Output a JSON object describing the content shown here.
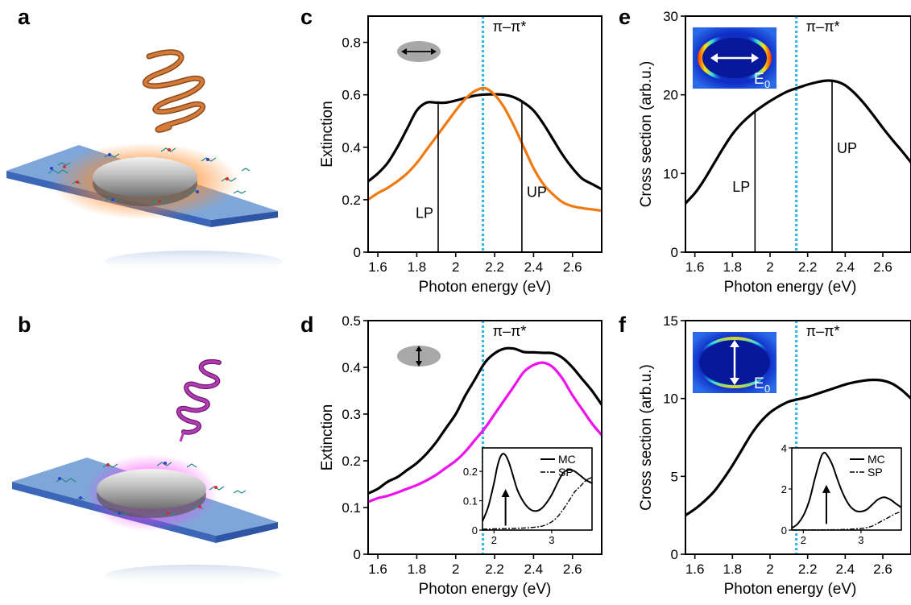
{
  "panel_labels": [
    "a",
    "b",
    "c",
    "d",
    "e",
    "f"
  ],
  "colors": {
    "black": "#000000",
    "orange": "#f07a10",
    "magenta": "#ee10ee",
    "transition_line": "#29b5e8",
    "substrate": "#7ea6d8"
  },
  "chart_data": [
    {
      "id": "c",
      "type": "line",
      "xlabel": "Photon energy (eV)",
      "ylabel": "Extinction",
      "xlim": [
        1.55,
        2.75
      ],
      "ylim": [
        0,
        0.9
      ],
      "xticks": [
        1.6,
        1.8,
        2,
        2.2,
        2.4,
        2.6
      ],
      "xtick_labels": [
        "1.6",
        "1.8",
        "2",
        "2.2",
        "2.4",
        "2.6"
      ],
      "yticks": [
        0,
        0.2,
        0.4,
        0.6,
        0.8
      ],
      "ytick_labels": [
        "0",
        "0.2",
        "0.4",
        "0.6",
        "0.8"
      ],
      "series": [
        {
          "color": "#000000",
          "x": [
            1.55,
            1.6,
            1.65,
            1.7,
            1.75,
            1.8,
            1.85,
            1.9,
            1.95,
            2.0,
            2.05,
            2.1,
            2.15,
            2.2,
            2.25,
            2.3,
            2.35,
            2.4,
            2.45,
            2.5,
            2.55,
            2.6,
            2.65,
            2.7,
            2.75
          ],
          "y": [
            0.27,
            0.3,
            0.34,
            0.4,
            0.47,
            0.54,
            0.57,
            0.57,
            0.57,
            0.578,
            0.588,
            0.597,
            0.601,
            0.602,
            0.6,
            0.59,
            0.57,
            0.54,
            0.49,
            0.43,
            0.37,
            0.32,
            0.28,
            0.26,
            0.24
          ]
        },
        {
          "color": "#f07a10",
          "x": [
            1.55,
            1.6,
            1.65,
            1.7,
            1.75,
            1.8,
            1.85,
            1.9,
            1.95,
            2.0,
            2.05,
            2.1,
            2.15,
            2.2,
            2.25,
            2.3,
            2.35,
            2.4,
            2.45,
            2.5,
            2.55,
            2.6,
            2.65,
            2.7,
            2.75
          ],
          "y": [
            0.2,
            0.225,
            0.245,
            0.27,
            0.3,
            0.34,
            0.39,
            0.44,
            0.49,
            0.54,
            0.585,
            0.615,
            0.625,
            0.6,
            0.55,
            0.48,
            0.4,
            0.32,
            0.26,
            0.22,
            0.19,
            0.175,
            0.168,
            0.163,
            0.158
          ]
        }
      ],
      "transition_x": 2.14,
      "transition_label": "π–π*",
      "markers": [
        {
          "x": 1.91,
          "label": "LP",
          "label_y": 0.13
        },
        {
          "x": 2.34,
          "label": "UP",
          "label_y": 0.21
        }
      ]
    },
    {
      "id": "d",
      "type": "line",
      "xlabel": "Photon energy (eV)",
      "ylabel": "Extinction",
      "xlim": [
        1.55,
        2.75
      ],
      "ylim": [
        0,
        0.5
      ],
      "xticks": [
        1.6,
        1.8,
        2,
        2.2,
        2.4,
        2.6
      ],
      "xtick_labels": [
        "1.6",
        "1.8",
        "2",
        "2.2",
        "2.4",
        "2.6"
      ],
      "yticks": [
        0,
        0.1,
        0.2,
        0.3,
        0.4,
        0.5
      ],
      "ytick_labels": [
        "0",
        "0.1",
        "0.2",
        "0.3",
        "0.4",
        "0.5"
      ],
      "series": [
        {
          "color": "#000000",
          "x": [
            1.55,
            1.6,
            1.65,
            1.7,
            1.75,
            1.8,
            1.85,
            1.9,
            1.95,
            2.0,
            2.05,
            2.1,
            2.15,
            2.2,
            2.25,
            2.3,
            2.35,
            2.4,
            2.45,
            2.5,
            2.55,
            2.6,
            2.65,
            2.7,
            2.75
          ],
          "y": [
            0.13,
            0.14,
            0.155,
            0.165,
            0.18,
            0.195,
            0.215,
            0.24,
            0.27,
            0.3,
            0.34,
            0.375,
            0.41,
            0.43,
            0.44,
            0.44,
            0.433,
            0.432,
            0.431,
            0.43,
            0.42,
            0.4,
            0.375,
            0.35,
            0.32
          ]
        },
        {
          "color": "#ee10ee",
          "x": [
            1.55,
            1.6,
            1.65,
            1.7,
            1.75,
            1.8,
            1.85,
            1.9,
            1.95,
            2.0,
            2.05,
            2.1,
            2.15,
            2.2,
            2.25,
            2.3,
            2.35,
            2.4,
            2.45,
            2.5,
            2.55,
            2.6,
            2.65,
            2.7,
            2.75
          ],
          "y": [
            0.112,
            0.12,
            0.125,
            0.132,
            0.14,
            0.148,
            0.158,
            0.17,
            0.185,
            0.2,
            0.22,
            0.245,
            0.27,
            0.3,
            0.33,
            0.36,
            0.39,
            0.405,
            0.41,
            0.4,
            0.375,
            0.34,
            0.31,
            0.28,
            0.255
          ]
        }
      ],
      "transition_x": 2.14,
      "transition_label": "π–π*",
      "inset": {
        "xlim": [
          1.8,
          3.7
        ],
        "ylim": [
          0,
          0.28
        ],
        "xticks": [
          2,
          3
        ],
        "xtick_labels": [
          "2",
          "3"
        ],
        "yticks": [
          0,
          0.1,
          0.2
        ],
        "ytick_labels": [
          "0",
          "0.1",
          "0.2"
        ],
        "legend": [
          "MC",
          "SP"
        ],
        "series": [
          {
            "name": "MC",
            "style": "solid",
            "x": [
              1.8,
              1.9,
              2.0,
              2.05,
              2.1,
              2.15,
              2.2,
              2.25,
              2.3,
              2.4,
              2.5,
              2.6,
              2.7,
              2.8,
              2.9,
              3.0,
              3.1,
              3.2,
              3.3,
              3.4,
              3.5,
              3.6,
              3.7
            ],
            "y": [
              0.03,
              0.08,
              0.16,
              0.21,
              0.245,
              0.26,
              0.255,
              0.235,
              0.205,
              0.14,
              0.1,
              0.075,
              0.065,
              0.07,
              0.09,
              0.12,
              0.16,
              0.195,
              0.205,
              0.2,
              0.185,
              0.17,
              0.16
            ]
          },
          {
            "name": "SP",
            "style": "dashdot",
            "x": [
              1.8,
              2.0,
              2.2,
              2.4,
              2.6,
              2.8,
              2.9,
              3.0,
              3.1,
              3.2,
              3.3,
              3.4,
              3.5,
              3.6,
              3.7
            ],
            "y": [
              0.003,
              0.004,
              0.005,
              0.006,
              0.008,
              0.012,
              0.018,
              0.028,
              0.045,
              0.07,
              0.1,
              0.13,
              0.15,
              0.17,
              0.18
            ]
          }
        ],
        "arrow": {
          "x": 2.2,
          "y_from": 0.015,
          "y_to": 0.14
        }
      }
    },
    {
      "id": "e",
      "type": "line",
      "xlabel": "Photon energy (eV)",
      "ylabel": "Cross section (arb.u.)",
      "xlim": [
        1.55,
        2.75
      ],
      "ylim": [
        0,
        30
      ],
      "xticks": [
        1.6,
        1.8,
        2,
        2.2,
        2.4,
        2.6
      ],
      "xtick_labels": [
        "1.6",
        "1.8",
        "2",
        "2.2",
        "2.4",
        "2.6"
      ],
      "yticks": [
        0,
        10,
        20,
        30
      ],
      "ytick_labels": [
        "0",
        "10",
        "20",
        "30"
      ],
      "series": [
        {
          "color": "#000000",
          "x": [
            1.55,
            1.6,
            1.65,
            1.7,
            1.75,
            1.8,
            1.85,
            1.9,
            1.95,
            2.0,
            2.05,
            2.1,
            2.15,
            2.2,
            2.25,
            2.3,
            2.35,
            2.4,
            2.45,
            2.5,
            2.55,
            2.6,
            2.65,
            2.7,
            2.75
          ],
          "y": [
            6.2,
            7.5,
            9.2,
            11.2,
            13.2,
            15.0,
            16.4,
            17.5,
            18.4,
            19.2,
            19.9,
            20.5,
            20.9,
            21.3,
            21.6,
            21.8,
            21.7,
            21.2,
            20.2,
            18.9,
            17.4,
            15.8,
            14.3,
            12.9,
            11.4
          ]
        }
      ],
      "transition_x": 2.14,
      "transition_label": "π–π*",
      "markers": [
        {
          "x": 1.92,
          "label": "LP",
          "label_y": 7.7
        },
        {
          "x": 2.33,
          "label": "UP",
          "label_y": 12.6
        }
      ],
      "field_label": "E",
      "field_sub": "0"
    },
    {
      "id": "f",
      "type": "line",
      "xlabel": "Photon energy (eV)",
      "ylabel": "Cross section (arb.u.)",
      "xlim": [
        1.55,
        2.75
      ],
      "ylim": [
        0,
        15
      ],
      "xticks": [
        1.6,
        1.8,
        2,
        2.2,
        2.4,
        2.6
      ],
      "xtick_labels": [
        "1.6",
        "1.8",
        "2",
        "2.2",
        "2.4",
        "2.6"
      ],
      "yticks": [
        0,
        5,
        10,
        15
      ],
      "ytick_labels": [
        "0",
        "5",
        "10",
        "15"
      ],
      "series": [
        {
          "color": "#000000",
          "x": [
            1.55,
            1.6,
            1.65,
            1.7,
            1.75,
            1.8,
            1.85,
            1.9,
            1.95,
            2.0,
            2.05,
            2.1,
            2.15,
            2.2,
            2.25,
            2.3,
            2.35,
            2.4,
            2.45,
            2.5,
            2.55,
            2.6,
            2.65,
            2.7,
            2.75
          ],
          "y": [
            2.5,
            2.9,
            3.4,
            4.0,
            4.8,
            5.7,
            6.7,
            7.7,
            8.5,
            9.1,
            9.5,
            9.8,
            9.95,
            10.1,
            10.3,
            10.5,
            10.7,
            10.9,
            11.05,
            11.15,
            11.2,
            11.15,
            10.95,
            10.55,
            10.0
          ]
        }
      ],
      "transition_x": 2.14,
      "transition_label": "π–π*",
      "field_label": "E",
      "field_sub": "0",
      "inset": {
        "xlim": [
          1.8,
          3.7
        ],
        "ylim": [
          0,
          4
        ],
        "xticks": [
          2,
          3
        ],
        "xtick_labels": [
          "2",
          "3"
        ],
        "yticks": [
          0,
          2,
          4
        ],
        "ytick_labels": [
          "0",
          "2",
          "4"
        ],
        "legend": [
          "MC",
          "SP"
        ],
        "series": [
          {
            "name": "MC",
            "style": "solid",
            "x": [
              1.8,
              1.9,
              2.0,
              2.1,
              2.2,
              2.3,
              2.35,
              2.4,
              2.5,
              2.6,
              2.7,
              2.8,
              2.9,
              3.0,
              3.1,
              3.2,
              3.3,
              3.4,
              3.5,
              3.6,
              3.7
            ],
            "y": [
              0.1,
              0.3,
              0.7,
              1.4,
              2.5,
              3.5,
              3.75,
              3.7,
              3.2,
              2.4,
              1.7,
              1.2,
              0.95,
              0.9,
              1.0,
              1.25,
              1.5,
              1.6,
              1.5,
              1.3,
              1.1
            ]
          },
          {
            "name": "SP",
            "style": "dashdot",
            "x": [
              1.8,
              2.2,
              2.6,
              2.8,
              3.0,
              3.1,
              3.2,
              3.3,
              3.4,
              3.5,
              3.6,
              3.7
            ],
            "y": [
              0.01,
              0.01,
              0.02,
              0.04,
              0.08,
              0.12,
              0.2,
              0.35,
              0.5,
              0.65,
              0.8,
              0.9
            ]
          }
        ],
        "arrow": {
          "x": 2.4,
          "y_from": 0.3,
          "y_to": 2.2
        }
      }
    }
  ]
}
